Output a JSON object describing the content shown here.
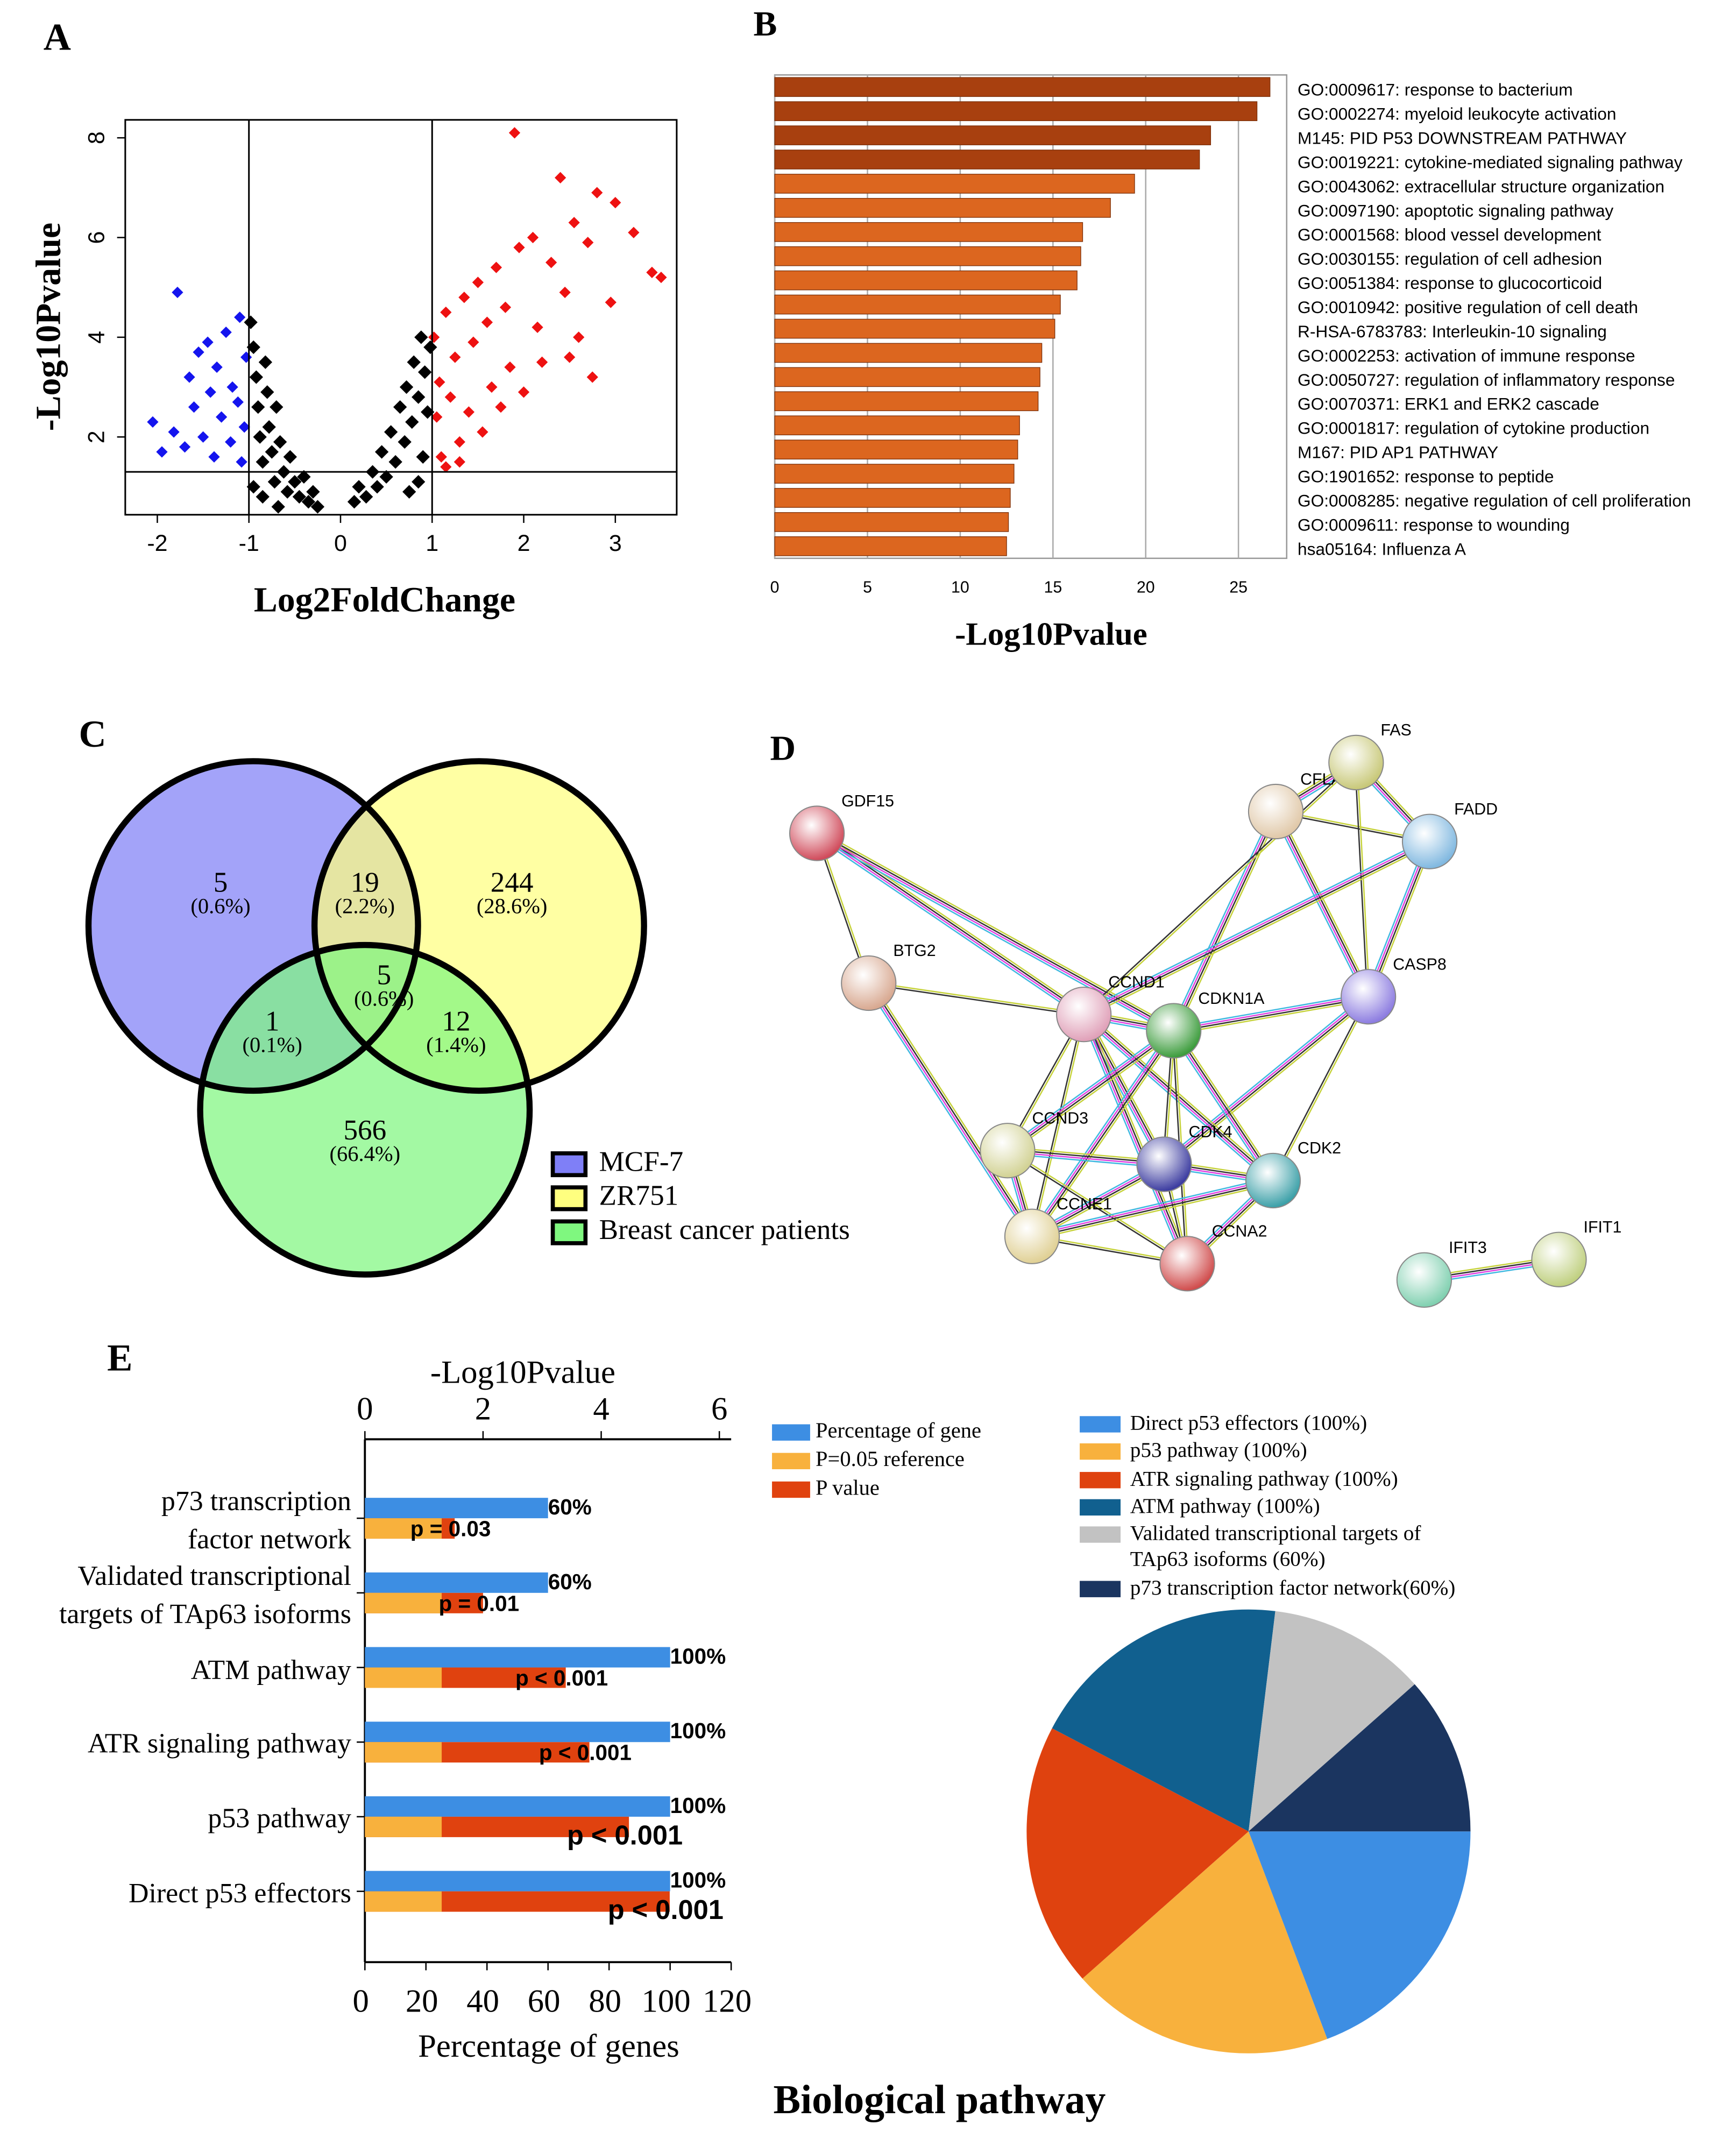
{
  "chart_data": [
    {
      "type": "scatter",
      "panel": "A",
      "xlabel": "Log2FoldChange",
      "ylabel": "-Log10Pvalue",
      "xlim": [
        -2.35,
        3.67
      ],
      "ylim": [
        0.44,
        8.36
      ],
      "xticks": [
        -2,
        -1,
        0,
        1,
        2,
        3
      ],
      "yticks": [
        2,
        4,
        6,
        8
      ],
      "threshold_x": [
        -1,
        1
      ],
      "threshold_y": 1.3,
      "series": [
        {
          "color": "#1414ee",
          "x": [
            -2.05,
            -1.95,
            -1.78,
            -1.82,
            -1.7,
            -1.65,
            -1.6,
            -1.55,
            -1.5,
            -1.45,
            -1.42,
            -1.38,
            -1.35,
            -1.3,
            -1.25,
            -1.2,
            -1.18,
            -1.12,
            -1.1,
            -1.05,
            -1.03,
            -1.08
          ],
          "y": [
            2.3,
            1.7,
            4.9,
            2.1,
            1.8,
            3.2,
            2.6,
            3.7,
            2.0,
            3.9,
            2.9,
            1.6,
            3.4,
            2.4,
            4.1,
            1.9,
            3.0,
            2.7,
            4.4,
            2.2,
            3.6,
            1.5
          ]
        },
        {
          "color": "#000000",
          "x": [
            -0.98,
            -0.95,
            -0.92,
            -0.9,
            -0.88,
            -0.85,
            -0.82,
            -0.8,
            -0.78,
            -0.75,
            -0.72,
            -0.7,
            -0.66,
            -0.62,
            -0.58,
            -0.55,
            -0.5,
            -0.45,
            -0.4,
            -0.35,
            -0.3,
            -0.25,
            -0.95,
            -0.85,
            -0.68,
            0.15,
            0.2,
            0.28,
            0.35,
            0.4,
            0.45,
            0.5,
            0.55,
            0.6,
            0.65,
            0.7,
            0.72,
            0.78,
            0.8,
            0.85,
            0.88,
            0.9,
            0.92,
            0.95,
            0.98,
            0.75,
            0.85
          ],
          "y": [
            4.3,
            3.8,
            3.2,
            2.6,
            2.0,
            1.5,
            3.5,
            2.9,
            2.2,
            1.7,
            1.1,
            2.6,
            1.9,
            1.3,
            0.9,
            1.6,
            1.1,
            0.8,
            1.2,
            0.7,
            0.9,
            0.6,
            1.0,
            0.8,
            0.6,
            0.7,
            1.0,
            0.8,
            1.3,
            1.0,
            1.7,
            1.2,
            2.1,
            1.5,
            2.6,
            1.9,
            3.0,
            2.3,
            3.5,
            2.8,
            4.0,
            1.6,
            3.3,
            2.5,
            3.8,
            0.9,
            1.1
          ]
        },
        {
          "color": "#ee1111",
          "x": [
            1.02,
            1.05,
            1.08,
            1.1,
            1.15,
            1.2,
            1.25,
            1.3,
            1.35,
            1.4,
            1.45,
            1.5,
            1.55,
            1.6,
            1.65,
            1.7,
            1.75,
            1.8,
            1.85,
            1.9,
            1.95,
            2.0,
            2.1,
            2.15,
            2.2,
            2.3,
            2.4,
            2.45,
            2.5,
            2.55,
            2.6,
            2.7,
            2.8,
            2.75,
            2.95,
            3.0,
            3.2,
            3.4,
            3.5,
            1.15,
            1.3
          ],
          "y": [
            4.0,
            2.4,
            3.1,
            1.6,
            4.5,
            2.8,
            3.6,
            1.9,
            4.8,
            2.5,
            3.9,
            5.1,
            2.1,
            4.3,
            3.0,
            5.4,
            2.6,
            4.6,
            3.4,
            8.1,
            5.8,
            2.9,
            6.0,
            4.2,
            3.5,
            5.5,
            7.2,
            4.9,
            3.6,
            6.3,
            4.0,
            5.9,
            6.9,
            3.2,
            4.7,
            6.7,
            6.1,
            5.3,
            5.2,
            1.4,
            1.5
          ]
        }
      ]
    },
    {
      "type": "barh",
      "panel": "B",
      "xlabel": "-Log10Pvalue",
      "xlim": [
        0,
        27.6
      ],
      "xticks": [
        0,
        5,
        10,
        15,
        20,
        25
      ],
      "grid": true,
      "categories": [
        "GO:0009617: response to bacterium",
        "GO:0002274: myeloid leukocyte activation",
        "M145: PID P53 DOWNSTREAM PATHWAY",
        "GO:0019221: cytokine-mediated signaling pathway",
        "GO:0043062: extracellular structure organization",
        "GO:0097190: apoptotic signaling pathway",
        "GO:0001568: blood vessel development",
        "GO:0030155: regulation of cell adhesion",
        "GO:0051384: response to glucocorticoid",
        "GO:0010942: positive regulation of cell death",
        "R-HSA-6783783: Interleukin-10 signaling",
        "GO:0002253: activation of immune response",
        "GO:0050727: regulation of inflammatory response",
        "GO:0070371: ERK1 and ERK2 cascade",
        "GO:0001817: regulation of cytokine production",
        "M167: PID AP1 PATHWAY",
        "GO:1901652: response to peptide",
        "GO:0008285: negative regulation of cell proliferation",
        "GO:0009611: response to wounding",
        "hsa05164: Influenza A"
      ],
      "values": [
        26.7,
        26.0,
        23.5,
        22.9,
        19.4,
        18.1,
        16.6,
        16.5,
        16.3,
        15.4,
        15.1,
        14.4,
        14.3,
        14.2,
        13.2,
        13.1,
        12.9,
        12.7,
        12.6,
        12.5
      ],
      "colors": [
        "#a8400f",
        "#a8400f",
        "#a8400f",
        "#a8400f",
        "#dc661f",
        "#dc661f",
        "#dc661f",
        "#dc661f",
        "#dc661f",
        "#dc661f",
        "#dc661f",
        "#dc661f",
        "#dc661f",
        "#dc661f",
        "#dc661f",
        "#dc661f",
        "#dc661f",
        "#dc661f",
        "#dc661f",
        "#dc661f"
      ]
    },
    {
      "type": "venn",
      "panel": "C",
      "sets": [
        "MCF-7",
        "ZR751",
        "Breast cancer patients"
      ],
      "colors": [
        "#7f7ff7",
        "#ffff7f",
        "#7ff77f"
      ],
      "values": [
        5,
        19,
        244,
        1,
        5,
        12,
        566
      ],
      "percent_labels": [
        "(0.6%)",
        "(2.2%)",
        "(28.6%)",
        "(0.1%)",
        "(0.6%)",
        "(1.4%)",
        "(66.4%)"
      ]
    },
    {
      "type": "dual-barh",
      "panel": "E",
      "xlabel": "Percentage of genes",
      "x2label": "-Log10Pvalue",
      "xlim": [
        0,
        120
      ],
      "xticks": [
        0,
        20,
        40,
        60,
        80,
        100,
        120
      ],
      "x2lim": [
        0,
        6.2
      ],
      "x2ticks": [
        0,
        2,
        4,
        6
      ],
      "categories": [
        "p73 transcription\nfactor network",
        "Validated transcriptional\ntargets of TAp63 isoforms",
        "ATM pathway",
        "ATR signaling pathway",
        "p53 pathway",
        "Direct p53 effectors"
      ],
      "series": [
        {
          "name": "Percentage of gene",
          "color": "#3d8ee3",
          "values": [
            60,
            60,
            100,
            100,
            100,
            100
          ],
          "value_labels": [
            "60%",
            "60%",
            "100%",
            "100%",
            "100%",
            "100%"
          ]
        },
        {
          "name": "P=0.05 reference",
          "color": "#f8b13d",
          "axis": "x2",
          "values": [
            1.3,
            1.3,
            1.3,
            1.3,
            1.3,
            1.3
          ]
        },
        {
          "name": "P value",
          "color": "#e0420f",
          "axis": "x2",
          "values": [
            1.52,
            2.0,
            3.4,
            3.8,
            4.47,
            5.16
          ],
          "value_labels": [
            "p = 0.03",
            "p = 0.01",
            "p < 0.001",
            "p < 0.001",
            "p < 0.001",
            "p < 0.001"
          ]
        }
      ]
    },
    {
      "type": "pie",
      "title": "Biological pathway",
      "categories": [
        "Direct p53 effectors (100%)",
        "p53 pathway (100%)",
        "ATR signaling pathway (100%)",
        "ATM pathway (100%)",
        "Validated transcriptional targets of\nTAp63 isoforms (60%)",
        "p73 transcription factor network(60%)"
      ],
      "values": [
        100,
        100,
        100,
        100,
        60,
        60
      ],
      "colors": [
        "#3d8ee3",
        "#f8b13d",
        "#df420f",
        "#11608f",
        "#c2c2c2",
        "#1b3560"
      ]
    }
  ],
  "network": {
    "panel": "D",
    "nodes": [
      "GDF15",
      "BTG2",
      "CCND1",
      "CDKN1A",
      "CFLAR",
      "FAS",
      "FADD",
      "CASP8",
      "CCND3",
      "CDK4",
      "CDK2",
      "CCNE1",
      "CCNA2",
      "IFIT3",
      "IFIT1"
    ]
  }
}
